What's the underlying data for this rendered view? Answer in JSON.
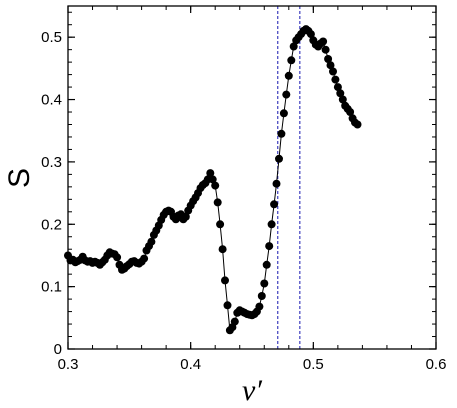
{
  "chart_data": {
    "type": "scatter",
    "xlabel": "ν′",
    "ylabel": "S",
    "xlim": [
      0.3,
      0.6
    ],
    "ylim": [
      0.0,
      0.55
    ],
    "x_ticks": [
      "0.3",
      "0.4",
      "0.5",
      "0.6"
    ],
    "y_ticks": [
      "0",
      "0.1",
      "0.2",
      "0.3",
      "0.4",
      "0.5"
    ],
    "grid": false,
    "marker_color": "#000000",
    "line_color": "#000000",
    "reference_line_color": "#2b2bb8",
    "reference_lines_x": [
      0.471,
      0.489
    ],
    "series": [
      {
        "points": [
          [
            0.3,
            0.15
          ],
          [
            0.302,
            0.142
          ],
          [
            0.304,
            0.143
          ],
          [
            0.306,
            0.139
          ],
          [
            0.308,
            0.141
          ],
          [
            0.31,
            0.143
          ],
          [
            0.312,
            0.148
          ],
          [
            0.314,
            0.142
          ],
          [
            0.316,
            0.14
          ],
          [
            0.318,
            0.141
          ],
          [
            0.32,
            0.138
          ],
          [
            0.322,
            0.14
          ],
          [
            0.324,
            0.138
          ],
          [
            0.326,
            0.135
          ],
          [
            0.328,
            0.139
          ],
          [
            0.33,
            0.143
          ],
          [
            0.332,
            0.15
          ],
          [
            0.334,
            0.155
          ],
          [
            0.336,
            0.153
          ],
          [
            0.338,
            0.152
          ],
          [
            0.34,
            0.147
          ],
          [
            0.342,
            0.135
          ],
          [
            0.344,
            0.127
          ],
          [
            0.346,
            0.129
          ],
          [
            0.348,
            0.133
          ],
          [
            0.35,
            0.136
          ],
          [
            0.352,
            0.14
          ],
          [
            0.354,
            0.141
          ],
          [
            0.356,
            0.138
          ],
          [
            0.358,
            0.137
          ],
          [
            0.36,
            0.14
          ],
          [
            0.362,
            0.145
          ],
          [
            0.364,
            0.158
          ],
          [
            0.366,
            0.165
          ],
          [
            0.368,
            0.172
          ],
          [
            0.37,
            0.183
          ],
          [
            0.372,
            0.19
          ],
          [
            0.374,
            0.198
          ],
          [
            0.376,
            0.207
          ],
          [
            0.378,
            0.215
          ],
          [
            0.38,
            0.22
          ],
          [
            0.382,
            0.222
          ],
          [
            0.384,
            0.22
          ],
          [
            0.386,
            0.212
          ],
          [
            0.388,
            0.208
          ],
          [
            0.39,
            0.214
          ],
          [
            0.392,
            0.216
          ],
          [
            0.394,
            0.208
          ],
          [
            0.396,
            0.212
          ],
          [
            0.398,
            0.222
          ],
          [
            0.4,
            0.23
          ],
          [
            0.402,
            0.237
          ],
          [
            0.404,
            0.243
          ],
          [
            0.406,
            0.25
          ],
          [
            0.408,
            0.258
          ],
          [
            0.41,
            0.263
          ],
          [
            0.412,
            0.266
          ],
          [
            0.414,
            0.272
          ],
          [
            0.416,
            0.282
          ],
          [
            0.418,
            0.272
          ],
          [
            0.42,
            0.262
          ],
          [
            0.422,
            0.235
          ],
          [
            0.424,
            0.2
          ],
          [
            0.426,
            0.16
          ],
          [
            0.428,
            0.11
          ],
          [
            0.43,
            0.07
          ],
          [
            0.432,
            0.03
          ],
          [
            0.434,
            0.035
          ],
          [
            0.436,
            0.044
          ],
          [
            0.438,
            0.058
          ],
          [
            0.44,
            0.062
          ],
          [
            0.442,
            0.06
          ],
          [
            0.444,
            0.058
          ],
          [
            0.446,
            0.056
          ],
          [
            0.448,
            0.055
          ],
          [
            0.45,
            0.054
          ],
          [
            0.452,
            0.056
          ],
          [
            0.454,
            0.06
          ],
          [
            0.456,
            0.068
          ],
          [
            0.458,
            0.085
          ],
          [
            0.46,
            0.105
          ],
          [
            0.462,
            0.135
          ],
          [
            0.464,
            0.165
          ],
          [
            0.466,
            0.2
          ],
          [
            0.468,
            0.232
          ],
          [
            0.47,
            0.265
          ],
          [
            0.472,
            0.305
          ],
          [
            0.474,
            0.345
          ],
          [
            0.476,
            0.378
          ],
          [
            0.478,
            0.408
          ],
          [
            0.48,
            0.438
          ],
          [
            0.482,
            0.463
          ],
          [
            0.484,
            0.485
          ],
          [
            0.486,
            0.495
          ],
          [
            0.488,
            0.5
          ],
          [
            0.49,
            0.505
          ],
          [
            0.492,
            0.51
          ],
          [
            0.494,
            0.513
          ],
          [
            0.496,
            0.51
          ],
          [
            0.498,
            0.505
          ],
          [
            0.5,
            0.495
          ],
          [
            0.502,
            0.488
          ],
          [
            0.504,
            0.485
          ],
          [
            0.506,
            0.49
          ],
          [
            0.508,
            0.493
          ],
          [
            0.51,
            0.48
          ],
          [
            0.512,
            0.465
          ],
          [
            0.514,
            0.455
          ],
          [
            0.516,
            0.445
          ],
          [
            0.518,
            0.432
          ],
          [
            0.52,
            0.42
          ],
          [
            0.522,
            0.41
          ],
          [
            0.524,
            0.4
          ],
          [
            0.526,
            0.39
          ],
          [
            0.528,
            0.385
          ],
          [
            0.53,
            0.38
          ],
          [
            0.532,
            0.37
          ],
          [
            0.534,
            0.363
          ],
          [
            0.536,
            0.36
          ]
        ]
      }
    ]
  }
}
